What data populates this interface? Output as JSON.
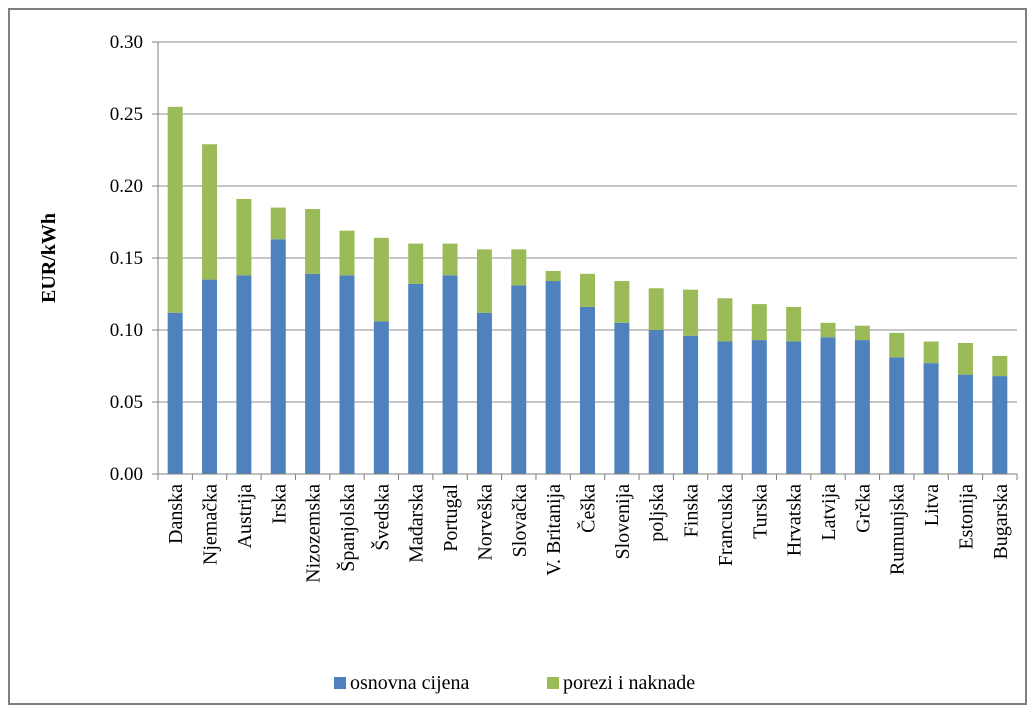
{
  "chart_data": {
    "type": "bar",
    "stacked": true,
    "title": "",
    "xlabel": "",
    "ylabel": "EUR/kWh",
    "ylim": [
      0,
      0.3
    ],
    "yticks": [
      "0.00",
      "0.05",
      "0.10",
      "0.15",
      "0.20",
      "0.25",
      "0.30"
    ],
    "grid": true,
    "legend_position": "bottom",
    "categories": [
      "Danska",
      "Njemačka",
      "Austrija",
      "Irska",
      "Nizozemska",
      "Španjolska",
      "Švedska",
      "Mađarska",
      "Portugal",
      "Norveška",
      "Slovačka",
      "V. Britanija",
      "Češka",
      "Slovenija",
      "poljska",
      "Finska",
      "Francuska",
      "Turska",
      "Hrvatska",
      "Latvija",
      "Grčka",
      "Rumunjska",
      "Litva",
      "Estonija",
      "Bugarska"
    ],
    "series": [
      {
        "name": "osnovna cijena",
        "color": "#4f81bd",
        "values": [
          0.112,
          0.135,
          0.138,
          0.163,
          0.139,
          0.138,
          0.106,
          0.132,
          0.138,
          0.112,
          0.131,
          0.134,
          0.116,
          0.105,
          0.1,
          0.096,
          0.092,
          0.093,
          0.092,
          0.095,
          0.093,
          0.081,
          0.077,
          0.069,
          0.068
        ]
      },
      {
        "name": "porezi i naknade",
        "color": "#9bbb59",
        "values": [
          0.143,
          0.094,
          0.053,
          0.022,
          0.045,
          0.031,
          0.058,
          0.028,
          0.022,
          0.044,
          0.025,
          0.007,
          0.023,
          0.029,
          0.029,
          0.032,
          0.03,
          0.025,
          0.024,
          0.01,
          0.01,
          0.017,
          0.015,
          0.022,
          0.014
        ]
      }
    ]
  }
}
